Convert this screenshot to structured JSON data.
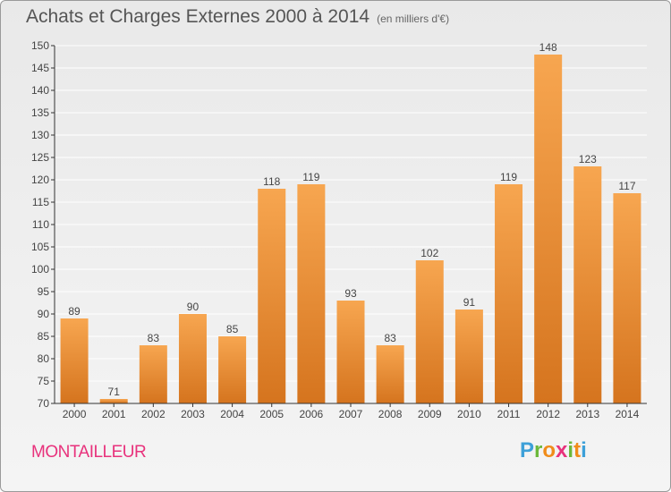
{
  "header": {
    "title": "Achats et Charges Externes 2000 à 2014",
    "subtitle": "(en milliers d'€)"
  },
  "footer": {
    "town": "MONTAILLEUR",
    "logo": [
      "P",
      "r",
      "o",
      "x",
      "i",
      "t",
      "i"
    ],
    "logo_colors": [
      "#3da0d8",
      "#6bb83a",
      "#f08c1a",
      "#e8327c",
      "#6bb83a",
      "#f08c1a",
      "#3da0d8"
    ]
  },
  "colors": {
    "bar_light": "#f7a650",
    "bar_dark": "#d5741e",
    "grid": "#ffffff",
    "axis": "#333333"
  },
  "chart_data": {
    "type": "bar",
    "title": "Achats et Charges Externes 2000 à 2014",
    "subtitle": "(en milliers d'€)",
    "xlabel": "",
    "ylabel": "",
    "categories": [
      "2000",
      "2001",
      "2002",
      "2003",
      "2004",
      "2005",
      "2006",
      "2007",
      "2008",
      "2009",
      "2010",
      "2011",
      "2012",
      "2013",
      "2014"
    ],
    "values": [
      89,
      71,
      83,
      90,
      85,
      118,
      119,
      93,
      83,
      102,
      91,
      119,
      148,
      123,
      117
    ],
    "ylim": [
      70,
      150
    ],
    "yticks": [
      70,
      75,
      80,
      85,
      90,
      95,
      100,
      105,
      110,
      115,
      120,
      125,
      130,
      135,
      140,
      145,
      150
    ],
    "grid": true,
    "legend": "none"
  }
}
